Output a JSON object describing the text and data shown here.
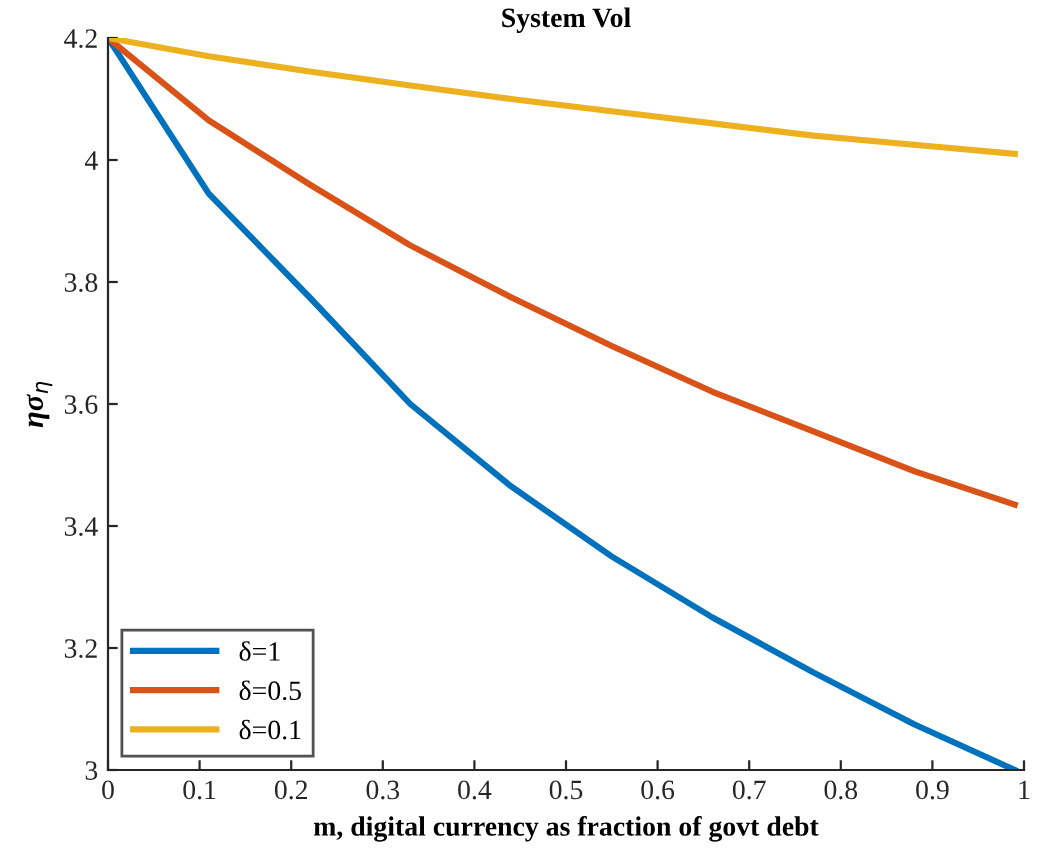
{
  "chart_data": {
    "type": "line",
    "title": "System Vol",
    "xlabel": "m, digital currency as fraction of govt debt",
    "ylabel": "ησ$_{η}$",
    "x": [
      0,
      0.11,
      0.22,
      0.33,
      0.44,
      0.55,
      0.66,
      0.77,
      0.88,
      0.99
    ],
    "series": [
      {
        "name": "δ=1",
        "color": "#0072bd",
        "values": [
          4.2,
          3.945,
          3.775,
          3.6,
          3.465,
          3.35,
          3.25,
          3.16,
          3.075,
          3.0
        ]
      },
      {
        "name": "δ=0.5",
        "color": "#d95319",
        "values": [
          4.2,
          4.065,
          3.96,
          3.86,
          3.775,
          3.695,
          3.62,
          3.555,
          3.49,
          3.435
        ]
      },
      {
        "name": "δ=0.1",
        "color": "#edb120",
        "values": [
          4.2,
          4.17,
          4.145,
          4.122,
          4.1,
          4.08,
          4.06,
          4.04,
          4.025,
          4.01
        ]
      }
    ],
    "xlim": [
      0,
      1
    ],
    "ylim": [
      3,
      4.2
    ],
    "xticks": [
      0,
      0.1,
      0.2,
      0.3,
      0.4,
      0.5,
      0.6,
      0.7,
      0.8,
      0.9,
      1
    ],
    "yticks": [
      3,
      3.2,
      3.4,
      3.6,
      3.8,
      4,
      4.2
    ],
    "grid": false,
    "legend": "bottom left",
    "marker": "none",
    "line_style": "solid"
  }
}
